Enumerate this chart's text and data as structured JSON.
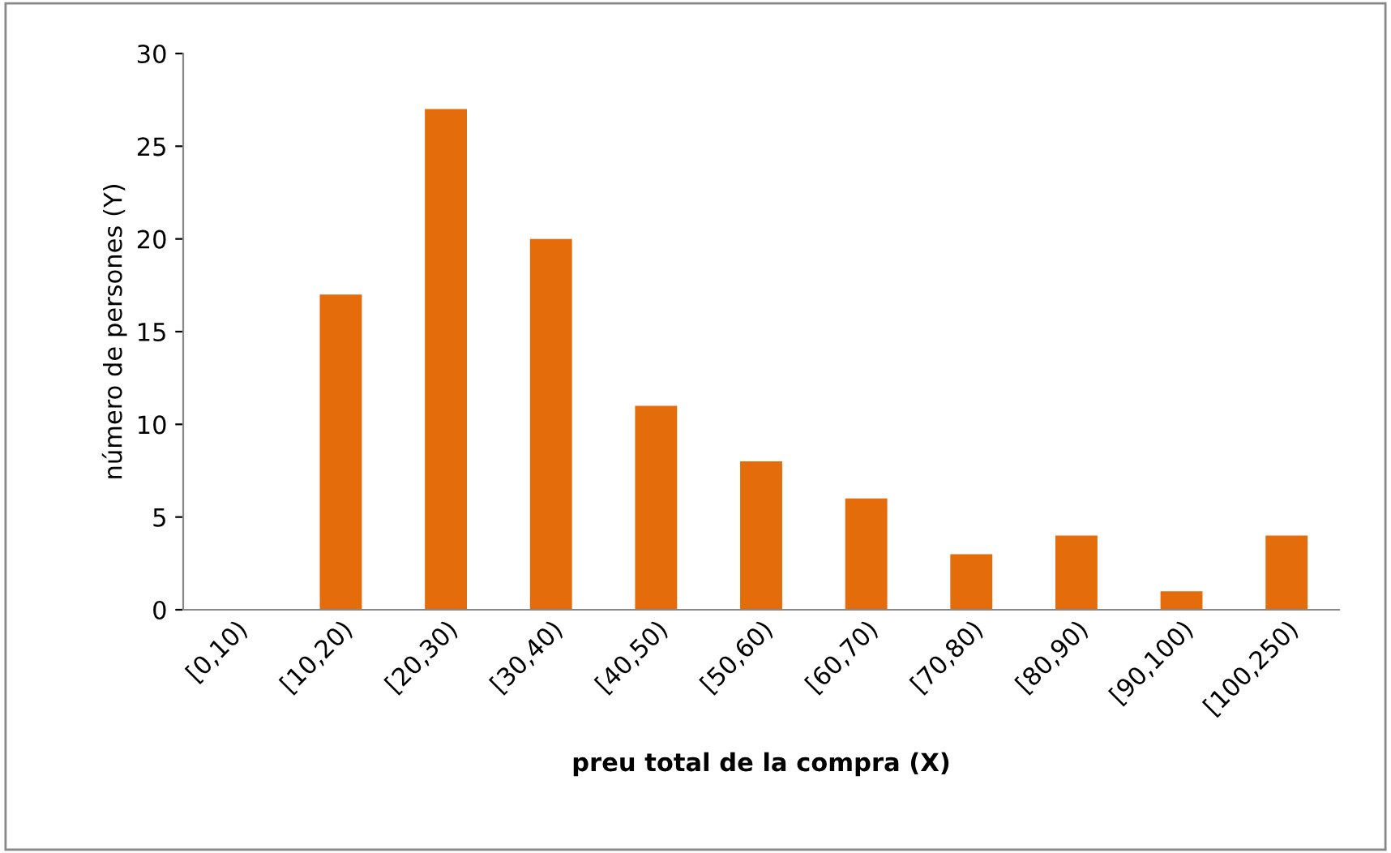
{
  "chart_data": {
    "type": "bar",
    "xlabel": "preu total de la compra (X)",
    "ylabel": "número de persones (Y)",
    "categories": [
      "[0,10)",
      "[10,20)",
      "[20,30)",
      "[30,40)",
      "[40,50)",
      "[50,60)",
      "[60,70)",
      "[70,80)",
      "[80,90)",
      "[90,100)",
      "[100,250)"
    ],
    "values": [
      0,
      17,
      27,
      20,
      11,
      8,
      6,
      3,
      4,
      1,
      4
    ],
    "color": "#e46c0a",
    "ylim": [
      0,
      30
    ],
    "yticks": [
      0,
      5,
      10,
      15,
      20,
      25,
      30
    ],
    "grid": false,
    "legend": false
  }
}
